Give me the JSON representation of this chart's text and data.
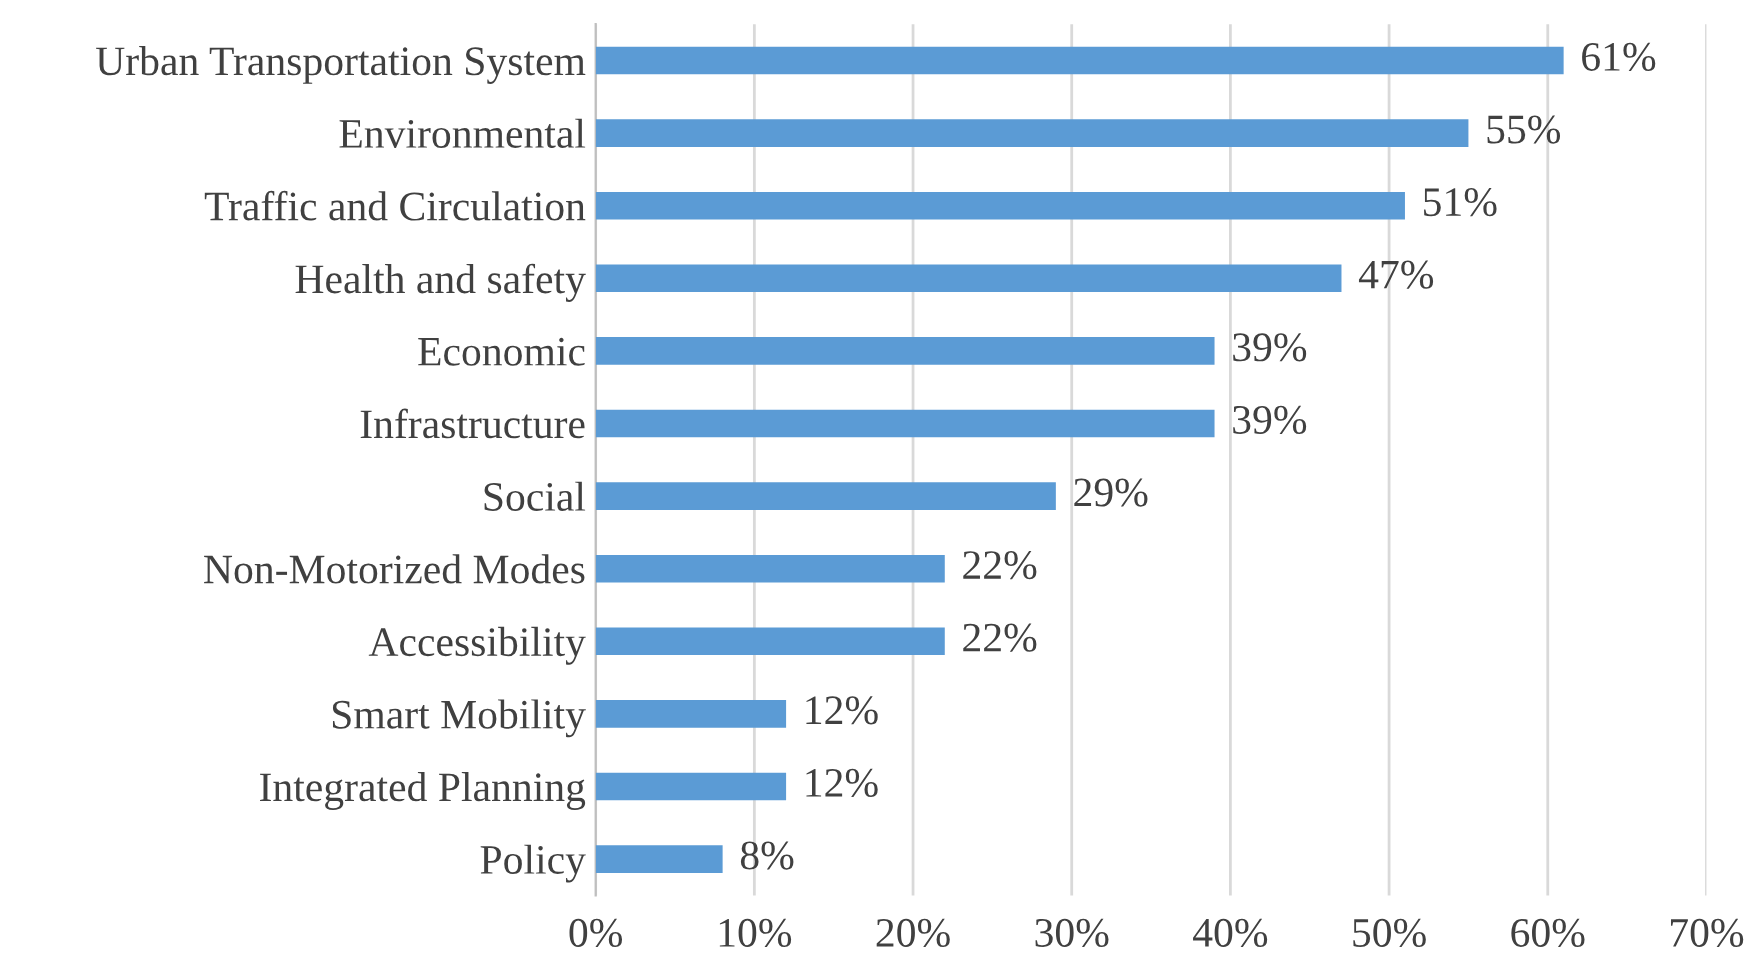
{
  "chart_data": {
    "type": "bar",
    "orientation": "horizontal",
    "categories": [
      "Urban Transportation System",
      "Environmental",
      "Traffic and Circulation",
      "Health and safety",
      "Economic",
      "Infrastructure",
      "Social",
      "Non-Motorized Modes",
      "Accessibility",
      "Smart Mobility",
      "Integrated Planning",
      "Policy"
    ],
    "values": [
      61,
      55,
      51,
      47,
      39,
      39,
      29,
      22,
      22,
      12,
      12,
      8
    ],
    "value_labels": [
      "61%",
      "55%",
      "51%",
      "47%",
      "39%",
      "39%",
      "29%",
      "22%",
      "22%",
      "12%",
      "12%",
      "8%"
    ],
    "color": "#5b9bd5",
    "xlim": [
      0,
      70
    ],
    "xticks": [
      {
        "value": 0,
        "label": "0%"
      },
      {
        "value": 10,
        "label": "10%"
      },
      {
        "value": 20,
        "label": "20%"
      },
      {
        "value": 30,
        "label": "30%"
      },
      {
        "value": 40,
        "label": "40%"
      },
      {
        "value": 50,
        "label": "50%"
      },
      {
        "value": 60,
        "label": "60%"
      },
      {
        "value": 70,
        "label": "70%"
      }
    ],
    "grid": "x",
    "legend": false
  }
}
